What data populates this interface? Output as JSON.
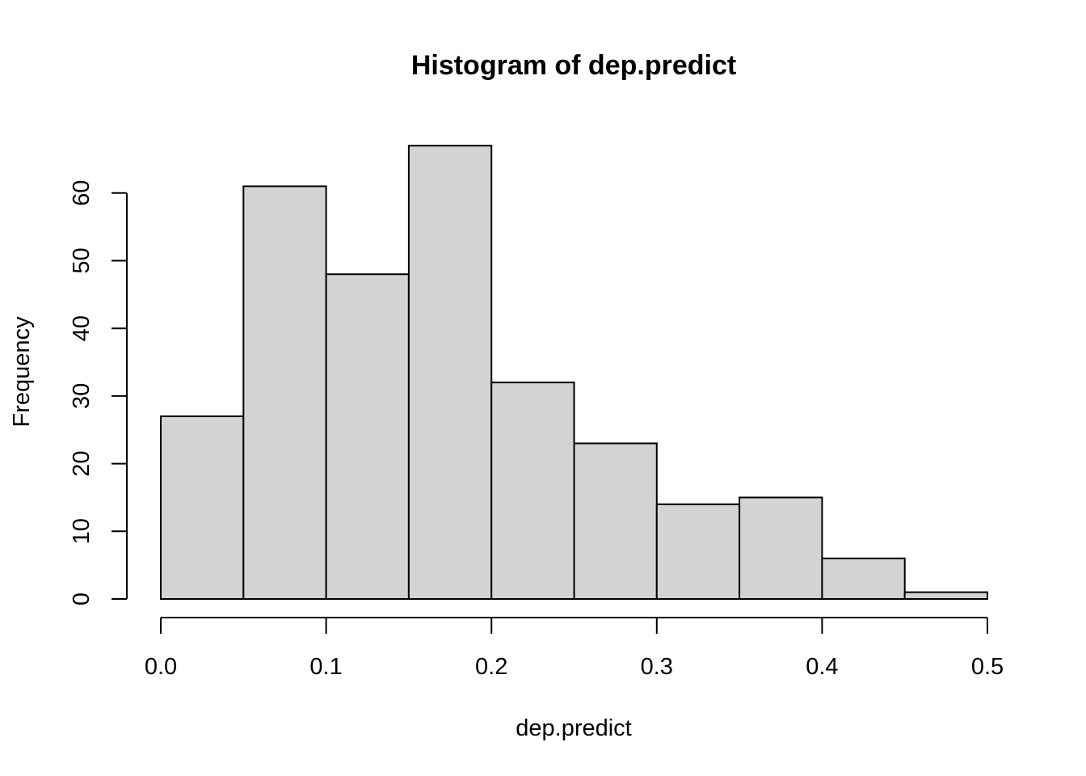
{
  "chart_data": {
    "type": "bar",
    "title": "Histogram of dep.predict",
    "xlabel": "dep.predict",
    "ylabel": "Frequency",
    "bin_edges": [
      0.0,
      0.05,
      0.1,
      0.15,
      0.2,
      0.25,
      0.3,
      0.35,
      0.4,
      0.45,
      0.5
    ],
    "values": [
      27,
      61,
      48,
      67,
      32,
      23,
      14,
      15,
      6,
      1
    ],
    "x_ticks": [
      "0.0",
      "0.1",
      "0.2",
      "0.3",
      "0.4",
      "0.5"
    ],
    "x_tick_values": [
      0.0,
      0.1,
      0.2,
      0.3,
      0.4,
      0.5
    ],
    "y_ticks": [
      "0",
      "10",
      "20",
      "30",
      "40",
      "50",
      "60"
    ],
    "y_tick_values": [
      0,
      10,
      20,
      30,
      40,
      50,
      60
    ],
    "xlim": [
      0.0,
      0.5
    ],
    "ylim": [
      0,
      67
    ],
    "grid": false,
    "bar_fill": "#d3d3d3",
    "bar_stroke": "#000000"
  }
}
